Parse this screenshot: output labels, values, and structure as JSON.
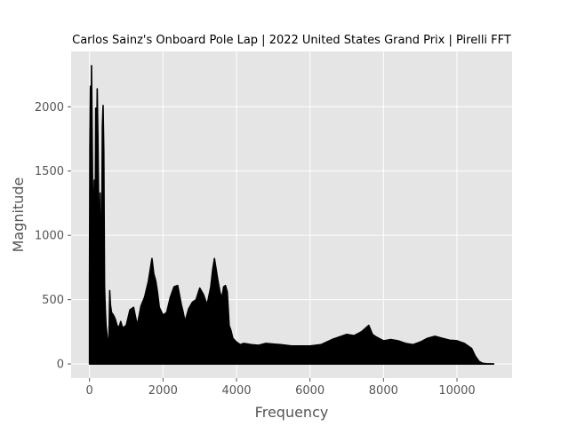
{
  "chart_data": {
    "type": "line",
    "title": "Carlos Sainz's Onboard Pole Lap | 2022 United States Grand Prix | Pirelli FFT",
    "xlabel": "Frequency",
    "ylabel": "Magnitude",
    "xlim": [
      -500,
      11500
    ],
    "ylim": [
      -110,
      2430
    ],
    "xticks": [
      0,
      2000,
      4000,
      6000,
      8000,
      10000
    ],
    "yticks": [
      0,
      500,
      1000,
      1500,
      2000
    ],
    "xtick_labels": [
      "0",
      "2000",
      "4000",
      "6000",
      "8000",
      "10000"
    ],
    "ytick_labels": [
      "0",
      "500",
      "1000",
      "1500",
      "2000"
    ],
    "grid": true,
    "background": "#e5e5e5",
    "line_color": "#000000",
    "series": [
      {
        "envelope_x": [
          0,
          10,
          25,
          40,
          55,
          70,
          90,
          110,
          130,
          150,
          170,
          190,
          210,
          230,
          250,
          270,
          290,
          310,
          330,
          350,
          370,
          390,
          410,
          430,
          450,
          470,
          490,
          510,
          530,
          550,
          570,
          600,
          650,
          700,
          750,
          800,
          850,
          900,
          1000,
          1100,
          1200,
          1300,
          1400,
          1500,
          1600,
          1700,
          1750,
          1800,
          1850,
          1900,
          2000,
          2100,
          2200,
          2300,
          2400,
          2500,
          2550,
          2600,
          2700,
          2800,
          2900,
          3000,
          3100,
          3200,
          3300,
          3350,
          3400,
          3500,
          3550,
          3600,
          3650,
          3700,
          3750,
          3800,
          3850,
          3900,
          4000,
          4100,
          4200,
          4400,
          4600,
          4800,
          5000,
          5200,
          5500,
          6000,
          6300,
          6600,
          6800,
          7000,
          7200,
          7400,
          7600,
          7700,
          7800,
          8000,
          8200,
          8400,
          8600,
          8800,
          9000,
          9200,
          9400,
          9600,
          9800,
          10000,
          10200,
          10400,
          10500,
          10600,
          10700,
          10800,
          11000
        ],
        "envelope_y": [
          680,
          1680,
          2160,
          1250,
          2320,
          1850,
          1200,
          1100,
          1430,
          800,
          1990,
          1550,
          2140,
          1760,
          1200,
          750,
          1330,
          830,
          900,
          1850,
          2010,
          1650,
          600,
          430,
          300,
          250,
          200,
          180,
          170,
          570,
          460,
          400,
          380,
          350,
          300,
          280,
          330,
          280,
          300,
          420,
          440,
          300,
          450,
          520,
          640,
          820,
          700,
          650,
          560,
          440,
          380,
          400,
          520,
          600,
          610,
          460,
          400,
          330,
          430,
          480,
          500,
          590,
          540,
          460,
          600,
          730,
          820,
          640,
          560,
          510,
          600,
          610,
          560,
          300,
          260,
          200,
          170,
          150,
          160,
          150,
          145,
          160,
          155,
          150,
          140,
          140,
          150,
          190,
          210,
          230,
          220,
          250,
          300,
          230,
          210,
          180,
          190,
          180,
          160,
          150,
          170,
          200,
          215,
          200,
          185,
          180,
          160,
          120,
          60,
          20,
          5,
          2,
          0
        ]
      }
    ]
  }
}
